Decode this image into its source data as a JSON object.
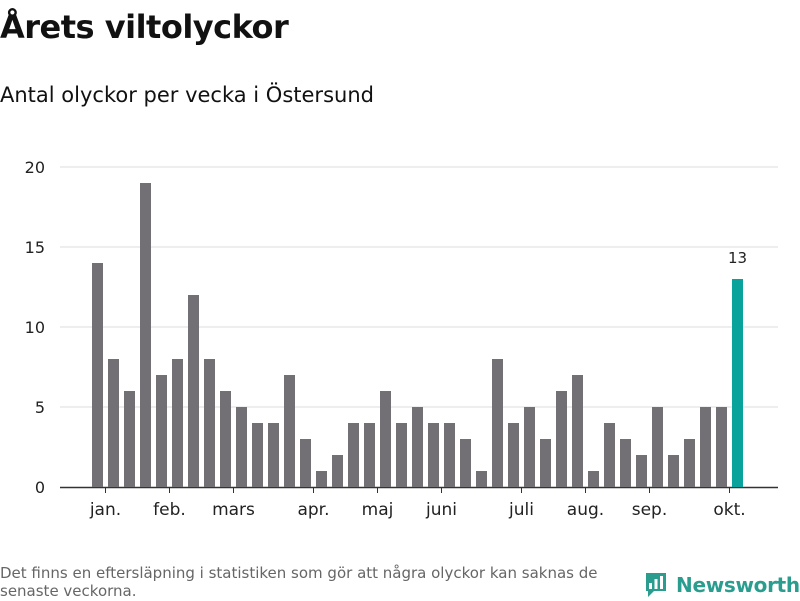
{
  "header": {
    "title": "Årets viltolyckor",
    "subtitle": "Antal olyckor per vecka i Östersund"
  },
  "footer": {
    "note": "Det finns en eftersläpning i statistiken som gör att några olyckor kan saknas de senaste veckorna.",
    "brand": "Newsworthy"
  },
  "colors": {
    "bar": "#727074",
    "highlight": "#0aa39b",
    "grid": "#dddddd",
    "axis": "#333333",
    "brand": "#2a9d8f"
  },
  "chart_data": {
    "type": "bar",
    "title": "Årets viltolyckor",
    "subtitle": "Antal olyckor per vecka i Östersund",
    "xlabel": "",
    "ylabel": "",
    "ylim": [
      0,
      20
    ],
    "yticks": [
      0,
      5,
      10,
      15,
      20
    ],
    "grid": true,
    "weeks": [
      1,
      2,
      3,
      4,
      5,
      6,
      7,
      8,
      9,
      10,
      11,
      12,
      13,
      14,
      15,
      16,
      17,
      18,
      19,
      20,
      21,
      22,
      23,
      24,
      25,
      26,
      27,
      28,
      29,
      30,
      31,
      32,
      33,
      34,
      35,
      36,
      37,
      38,
      39,
      40,
      41
    ],
    "values": [
      14,
      8,
      6,
      19,
      7,
      8,
      12,
      8,
      6,
      5,
      4,
      4,
      7,
      3,
      1,
      2,
      4,
      4,
      6,
      4,
      5,
      4,
      4,
      3,
      1,
      8,
      4,
      5,
      3,
      6,
      7,
      1,
      4,
      3,
      2,
      5,
      2,
      3,
      5,
      5,
      13
    ],
    "highlight_index": 40,
    "highlight_label": "13",
    "month_ticks": [
      {
        "label": "jan.",
        "week": 1.5
      },
      {
        "label": "feb.",
        "week": 5.5
      },
      {
        "label": "mars",
        "week": 9.5
      },
      {
        "label": "apr.",
        "week": 14.5
      },
      {
        "label": "maj",
        "week": 18.5
      },
      {
        "label": "juni",
        "week": 22.5
      },
      {
        "label": "juli",
        "week": 27.5
      },
      {
        "label": "aug.",
        "week": 31.5
      },
      {
        "label": "sep.",
        "week": 35.5
      },
      {
        "label": "okt.",
        "week": 40.5
      }
    ]
  }
}
